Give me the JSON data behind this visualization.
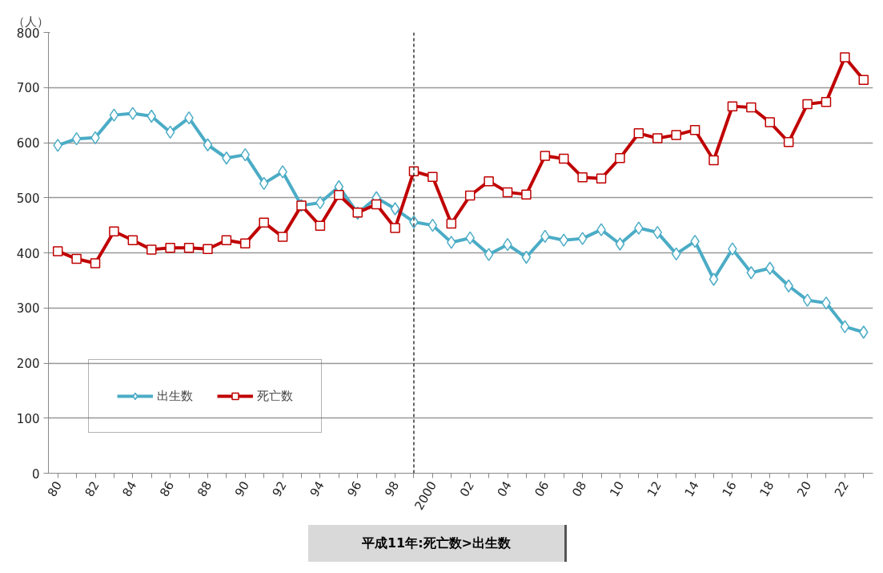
{
  "chart_data": {
    "type": "line",
    "ylabel": "（人）",
    "x": [
      1980,
      1981,
      1982,
      1983,
      1984,
      1985,
      1986,
      1987,
      1988,
      1989,
      1990,
      1991,
      1992,
      1993,
      1994,
      1995,
      1996,
      1997,
      1998,
      1999,
      2000,
      2001,
      2002,
      2003,
      2004,
      2005,
      2006,
      2007,
      2008,
      2009,
      2010,
      2011,
      2012,
      2013,
      2014,
      2015,
      2016,
      2017,
      2018,
      2019,
      2020,
      2021,
      2022,
      2023
    ],
    "series": [
      {
        "name": "出生数",
        "color": "#4bacc6",
        "marker": "diamond",
        "values": [
          595,
          607,
          609,
          650,
          653,
          648,
          619,
          645,
          596,
          572,
          578,
          526,
          547,
          486,
          491,
          520,
          472,
          500,
          480,
          456,
          450,
          419,
          427,
          397,
          415,
          392,
          430,
          423,
          426,
          442,
          416,
          445,
          437,
          398,
          421,
          352,
          407,
          364,
          372,
          340,
          314,
          309,
          266,
          256
        ]
      },
      {
        "name": "死亡数",
        "color": "#c00000",
        "marker": "square",
        "values": [
          403,
          389,
          381,
          439,
          423,
          406,
          409,
          409,
          407,
          423,
          417,
          455,
          429,
          486,
          449,
          505,
          473,
          488,
          445,
          548,
          538,
          453,
          504,
          530,
          510,
          506,
          576,
          571,
          537,
          535,
          572,
          617,
          608,
          614,
          623,
          568,
          666,
          664,
          637,
          601,
          670,
          674,
          755,
          714
        ]
      }
    ],
    "xlim": [
      1979.5,
      2023.5
    ],
    "xticks": [
      {
        "value": 1980,
        "label": "80"
      },
      {
        "value": 1981,
        "label": null
      },
      {
        "value": 1982,
        "label": "82"
      },
      {
        "value": 1983,
        "label": null
      },
      {
        "value": 1984,
        "label": "84"
      },
      {
        "value": 1985,
        "label": null
      },
      {
        "value": 1986,
        "label": "86"
      },
      {
        "value": 1987,
        "label": null
      },
      {
        "value": 1988,
        "label": "88"
      },
      {
        "value": 1989,
        "label": null
      },
      {
        "value": 1990,
        "label": "90"
      },
      {
        "value": 1991,
        "label": null
      },
      {
        "value": 1992,
        "label": "92"
      },
      {
        "value": 1993,
        "label": null
      },
      {
        "value": 1994,
        "label": "94"
      },
      {
        "value": 1995,
        "label": null
      },
      {
        "value": 1996,
        "label": "96"
      },
      {
        "value": 1997,
        "label": null
      },
      {
        "value": 1998,
        "label": "98"
      },
      {
        "value": 1999,
        "label": null
      },
      {
        "value": 2000,
        "label": "2000"
      },
      {
        "value": 2001,
        "label": null
      },
      {
        "value": 2002,
        "label": "02"
      },
      {
        "value": 2003,
        "label": null
      },
      {
        "value": 2004,
        "label": "04"
      },
      {
        "value": 2005,
        "label": null
      },
      {
        "value": 2006,
        "label": "06"
      },
      {
        "value": 2007,
        "label": null
      },
      {
        "value": 2008,
        "label": "08"
      },
      {
        "value": 2009,
        "label": null
      },
      {
        "value": 2010,
        "label": "10"
      },
      {
        "value": 2011,
        "label": null
      },
      {
        "value": 2012,
        "label": "12"
      },
      {
        "value": 2013,
        "label": null
      },
      {
        "value": 2014,
        "label": "14"
      },
      {
        "value": 2015,
        "label": null
      },
      {
        "value": 2016,
        "label": "16"
      },
      {
        "value": 2017,
        "label": null
      },
      {
        "value": 2018,
        "label": "18"
      },
      {
        "value": 2019,
        "label": null
      },
      {
        "value": 2020,
        "label": "20"
      },
      {
        "value": 2021,
        "label": null
      },
      {
        "value": 2022,
        "label": "22"
      },
      {
        "value": 2023,
        "label": null
      }
    ],
    "ylim": [
      0,
      800
    ],
    "yticks": [
      0,
      100,
      200,
      300,
      400,
      500,
      600,
      700,
      800
    ],
    "grid": "y",
    "legend": "bottom left",
    "line_style": "solid",
    "ref_lines": [
      {
        "axis": "x",
        "value": 1999,
        "label": null,
        "color": "#000000",
        "line_style": "dashed"
      }
    ],
    "annotations": [
      "平成11年:死亡数>出生数"
    ]
  }
}
